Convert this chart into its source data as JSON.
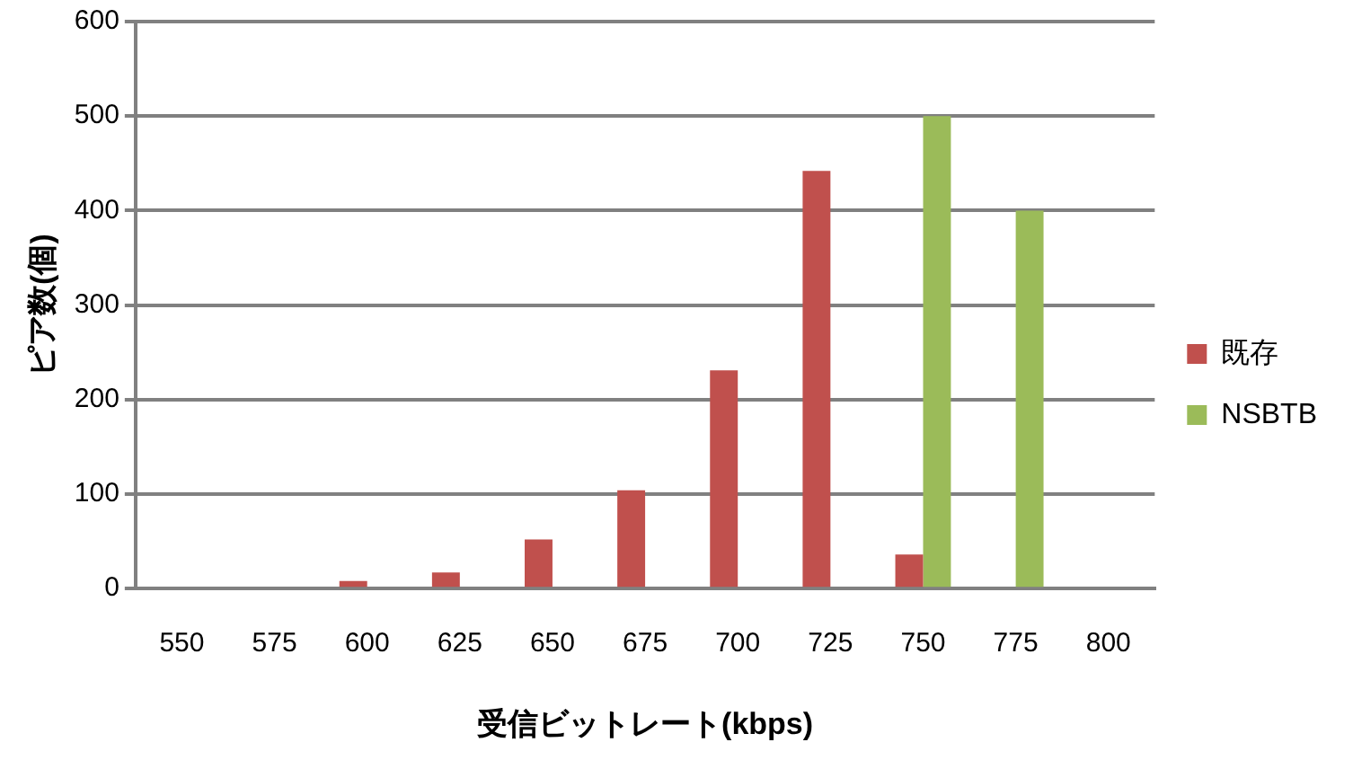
{
  "chart_data": {
    "type": "bar",
    "xlabel": "受信ビットレート(kbps)",
    "ylabel": "ピア数(個)",
    "categories": [
      "550",
      "575",
      "600",
      "625",
      "650",
      "675",
      "700",
      "725",
      "750",
      "775",
      "800"
    ],
    "series": [
      {
        "name": "既存",
        "color": "#c0504d",
        "values": [
          0,
          0,
          8,
          17,
          52,
          104,
          231,
          442,
          36,
          0,
          0
        ]
      },
      {
        "name": "NSBTB",
        "color": "#9bbb59",
        "values": [
          0,
          0,
          0,
          0,
          0,
          0,
          0,
          0,
          500,
          400,
          0
        ]
      }
    ],
    "ylim": [
      0,
      600
    ],
    "yticks": [
      0,
      100,
      200,
      300,
      400,
      500,
      600
    ],
    "grid": "y",
    "legend": "right"
  }
}
